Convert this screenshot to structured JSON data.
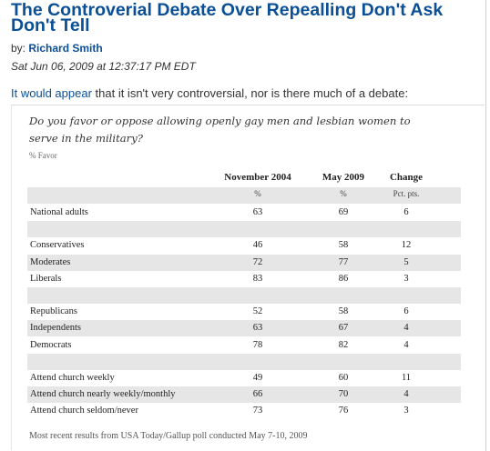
{
  "article": {
    "title": "The Controverial Debate Over Repealling Don't Ask Don't Tell",
    "byline_prefix": "by:",
    "author": "Richard Smith",
    "date": "Sat Jun 06, 2009 at 12:37:17 PM EDT",
    "intro_link": "It would appear",
    "intro_rest": " that it isn't very controversial, nor is there much of a debate:"
  },
  "poll": {
    "question": "Do you favor or oppose allowing openly gay men and lesbian women to serve in the military?",
    "favor_note": "% Favor",
    "columns": [
      {
        "label": "November 2004",
        "sub": "%"
      },
      {
        "label": "May 2009",
        "sub": "%"
      },
      {
        "label": "Change",
        "sub": "Pct. pts."
      }
    ],
    "rows": [
      {
        "label": "National adults",
        "nov2004": "63",
        "may2009": "69",
        "change": "6"
      },
      {
        "label": "",
        "nov2004": "",
        "may2009": "",
        "change": ""
      },
      {
        "label": "Conservatives",
        "nov2004": "46",
        "may2009": "58",
        "change": "12"
      },
      {
        "label": "Moderates",
        "nov2004": "72",
        "may2009": "77",
        "change": "5"
      },
      {
        "label": "Liberals",
        "nov2004": "83",
        "may2009": "86",
        "change": "3"
      },
      {
        "label": "",
        "nov2004": "",
        "may2009": "",
        "change": ""
      },
      {
        "label": "Republicans",
        "nov2004": "52",
        "may2009": "58",
        "change": "6"
      },
      {
        "label": "Independents",
        "nov2004": "63",
        "may2009": "67",
        "change": "4"
      },
      {
        "label": "Democrats",
        "nov2004": "78",
        "may2009": "82",
        "change": "4"
      },
      {
        "label": "",
        "nov2004": "",
        "may2009": "",
        "change": ""
      },
      {
        "label": "Attend church weekly",
        "nov2004": "49",
        "may2009": "60",
        "change": "11"
      },
      {
        "label": "Attend church nearly weekly/monthly",
        "nov2004": "66",
        "may2009": "70",
        "change": "4"
      },
      {
        "label": "Attend church seldom/never",
        "nov2004": "73",
        "may2009": "76",
        "change": "3"
      }
    ],
    "footer": "Most recent results from USA Today/Gallup poll conducted May 7-10, 2009"
  }
}
